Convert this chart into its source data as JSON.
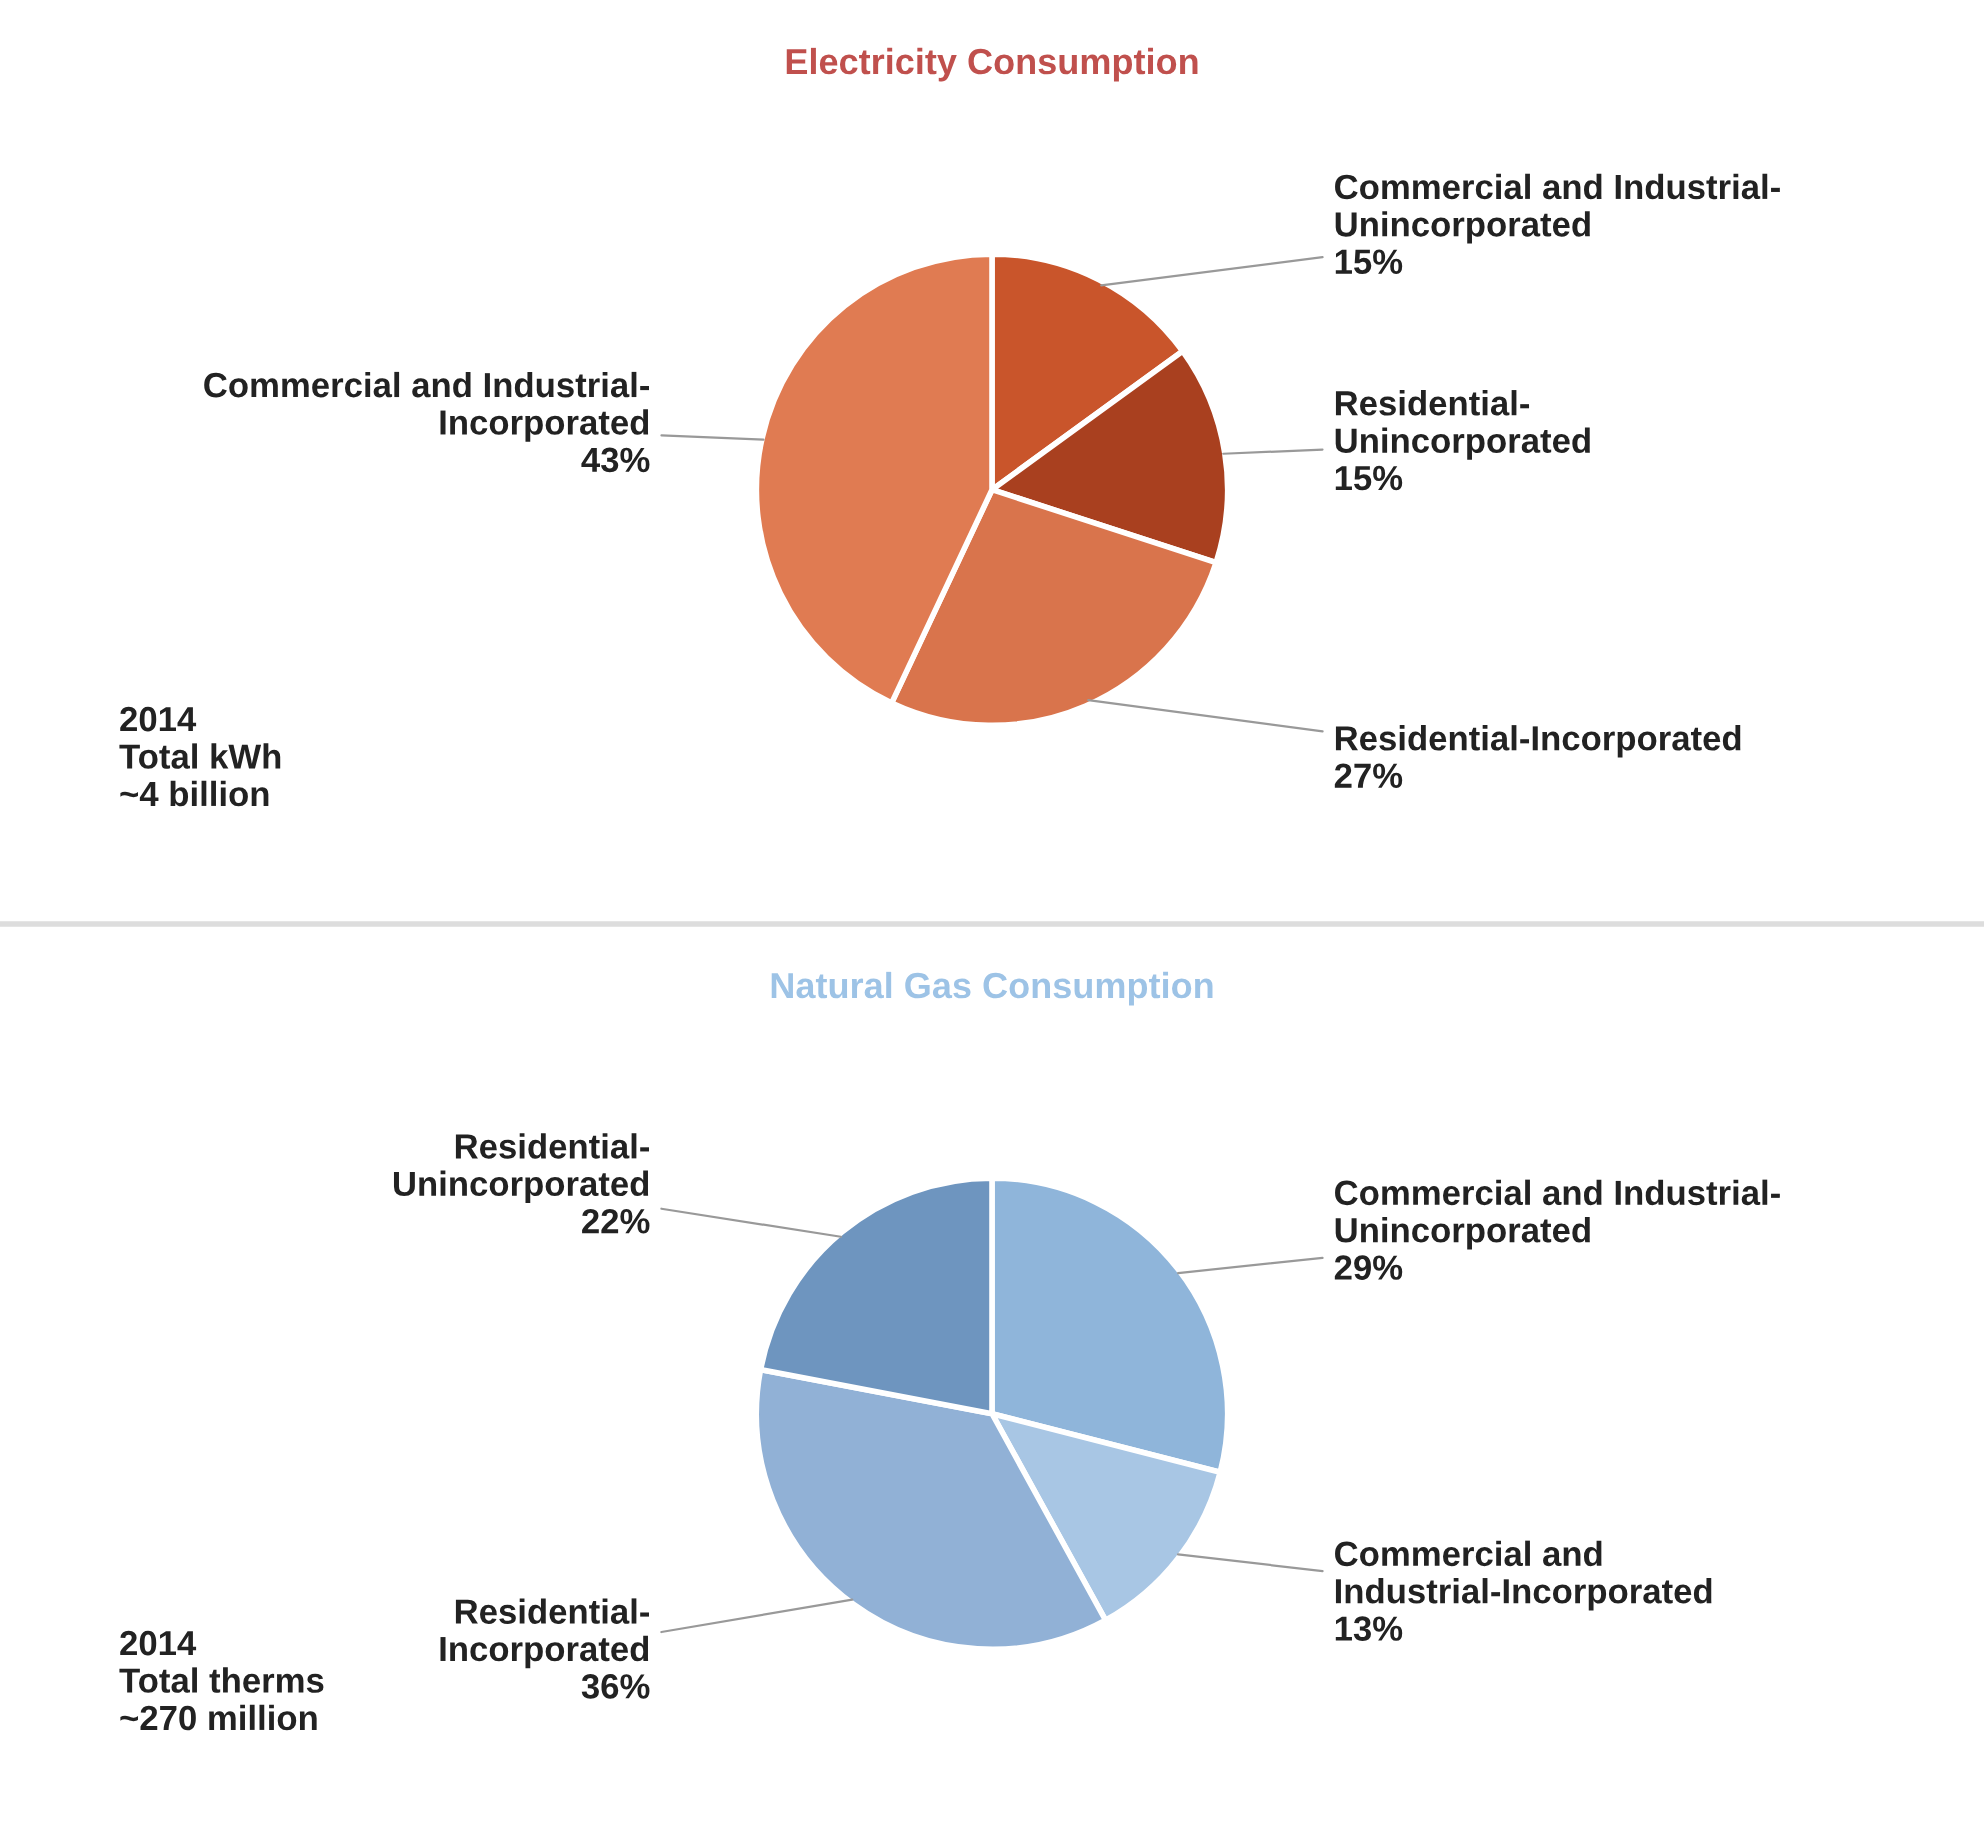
{
  "chart_data": [
    {
      "type": "pie",
      "title": "Electricity Consumption",
      "categories": [
        "Commercial and Industrial-\nUnincorporated",
        "Residential-\nUnincorporated",
        "Residential-Incorporated",
        "Commercial and Industrial-\nIncorporated"
      ],
      "values": [
        15,
        15,
        27,
        43
      ],
      "value_labels": [
        "15%",
        "15%",
        "27%",
        "43%"
      ],
      "colors": [
        "#c9552b",
        "#a9401f",
        "#d9744c",
        "#e07b52"
      ],
      "annotations": [
        "2014\nTotal kWh\n~4 billion"
      ]
    },
    {
      "type": "pie",
      "title": "Natural Gas Consumption",
      "categories": [
        "Commercial and Industrial-\nUnincorporated",
        "Commercial and\nIndustrial-Incorporated",
        "Residential-\nIncorporated",
        "Residential-\nUnincorporated"
      ],
      "values": [
        29,
        13,
        36,
        22
      ],
      "value_labels": [
        "29%",
        "13%",
        "36%",
        "22%"
      ],
      "colors": [
        "#8fb5da",
        "#a8c6e4",
        "#91b1d6",
        "#6e95bf"
      ],
      "annotations": [
        "2014\nTotal therms\n~270 million"
      ]
    }
  ]
}
